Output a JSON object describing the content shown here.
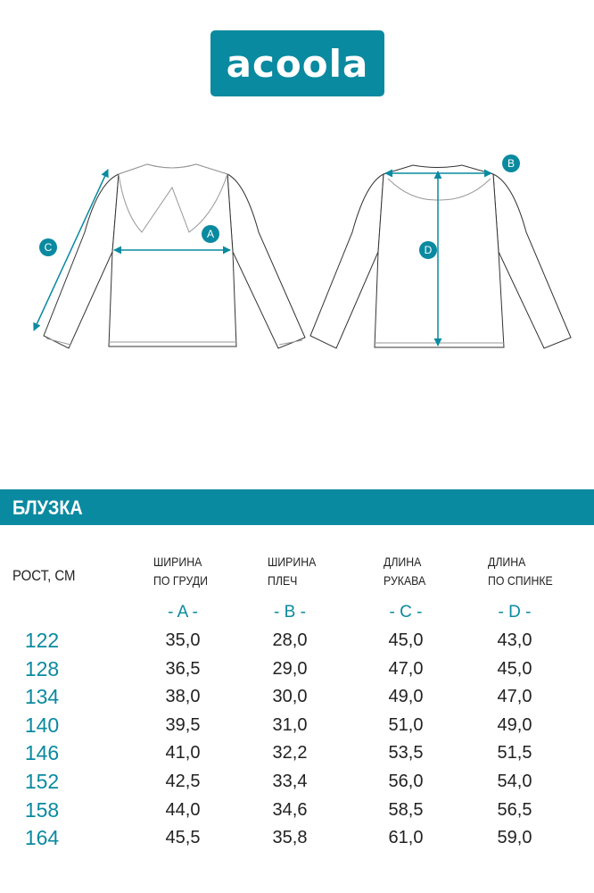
{
  "logo": {
    "text": "acoola"
  },
  "colors": {
    "accent": "#0a8aa0",
    "text": "#222222"
  },
  "diagram": {
    "labels": {
      "a": "A",
      "b": "B",
      "c": "C",
      "d": "D"
    }
  },
  "title": "БЛУЗКА",
  "table": {
    "row_header": "РОСТ, СМ",
    "columns": [
      {
        "line1": "ШИРИНА",
        "line2": "ПО ГРУДИ",
        "letter": "- A -"
      },
      {
        "line1": "ШИРИНА",
        "line2": "ПЛЕЧ",
        "letter": "- B -"
      },
      {
        "line1": "ДЛИНА",
        "line2": "РУКАВА",
        "letter": "- C -"
      },
      {
        "line1": "ДЛИНА",
        "line2": "ПО СПИНКЕ",
        "letter": "- D -"
      }
    ],
    "rows": [
      {
        "height": "122",
        "values": [
          "35,0",
          "28,0",
          "45,0",
          "43,0"
        ]
      },
      {
        "height": "128",
        "values": [
          "36,5",
          "29,0",
          "47,0",
          "45,0"
        ]
      },
      {
        "height": "134",
        "values": [
          "38,0",
          "30,0",
          "49,0",
          "47,0"
        ]
      },
      {
        "height": "140",
        "values": [
          "39,5",
          "31,0",
          "51,0",
          "49,0"
        ]
      },
      {
        "height": "146",
        "values": [
          "41,0",
          "32,2",
          "53,5",
          "51,5"
        ]
      },
      {
        "height": "152",
        "values": [
          "42,5",
          "33,4",
          "56,0",
          "54,0"
        ]
      },
      {
        "height": "158",
        "values": [
          "44,0",
          "34,6",
          "58,5",
          "56,5"
        ]
      },
      {
        "height": "164",
        "values": [
          "45,5",
          "35,8",
          "61,0",
          "59,0"
        ]
      }
    ]
  }
}
